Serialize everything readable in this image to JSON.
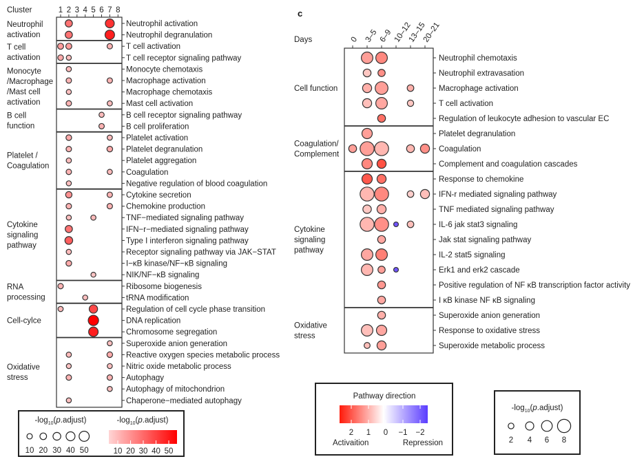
{
  "chart_data": [
    {
      "type": "scatter",
      "x_title": "Cluster",
      "columns": [
        "1",
        "2",
        "3",
        "4",
        "5",
        "6",
        "7",
        "8"
      ],
      "size_encoding": "-log10(p.adjust)",
      "color_encoding": "-log10(p.adjust)",
      "color_range": [
        "#ffd5d5",
        "#ff0000"
      ],
      "groups": [
        {
          "label": [
            "Neutrophil",
            "activation"
          ],
          "rows": [
            0,
            1
          ]
        },
        {
          "label": [
            "T cell",
            "activation"
          ],
          "rows": [
            2,
            3
          ]
        },
        {
          "label": [
            "Monocyte",
            "/Macrophage",
            "/Mast cell",
            "activation"
          ],
          "rows": [
            4,
            7
          ]
        },
        {
          "label": [
            "B cell",
            "function"
          ],
          "rows": [
            8,
            9
          ]
        },
        {
          "label": [
            "Platelet /",
            "Coagulation"
          ],
          "rows": [
            10,
            14
          ]
        },
        {
          "label": [
            "Cytokine",
            "signaling",
            "pathway"
          ],
          "rows": [
            15,
            22
          ]
        },
        {
          "label": [
            "RNA",
            "processing"
          ],
          "rows": [
            23,
            24
          ]
        },
        {
          "label": [
            "Cell-cylce"
          ],
          "rows": [
            25,
            27
          ]
        },
        {
          "label": [
            "Oxidative",
            "stress"
          ],
          "rows": [
            28,
            33
          ]
        }
      ],
      "rows": [
        {
          "term": "Neutrophil activation",
          "points": [
            [
              2,
              25
            ],
            [
              7,
              40
            ]
          ]
        },
        {
          "term": "Neutrophil degranulation",
          "points": [
            [
              2,
              25
            ],
            [
              7,
              45
            ]
          ]
        },
        {
          "term": "T cell activation",
          "points": [
            [
              1,
              15
            ],
            [
              2,
              15
            ],
            [
              7,
              10
            ]
          ]
        },
        {
          "term": "T cell receptor signaling pathway",
          "points": [
            [
              1,
              12
            ],
            [
              2,
              7
            ]
          ]
        },
        {
          "term": "Monocyte chemotaxis",
          "points": [
            [
              2,
              8
            ]
          ]
        },
        {
          "term": "Macrophage activation",
          "points": [
            [
              2,
              10
            ],
            [
              7,
              10
            ]
          ]
        },
        {
          "term": "Macrophage chemotaxis",
          "points": [
            [
              2,
              7
            ]
          ]
        },
        {
          "term": "Mast cell activation",
          "points": [
            [
              2,
              10
            ],
            [
              7,
              8
            ]
          ]
        },
        {
          "term": "B cell receptor signaling pathway",
          "points": [
            [
              6,
              8
            ]
          ]
        },
        {
          "term": "B cell proliferation",
          "points": [
            [
              6,
              10
            ]
          ]
        },
        {
          "term": "Platelet activation",
          "points": [
            [
              2,
              12
            ],
            [
              7,
              8
            ]
          ]
        },
        {
          "term": "Platelet degranulation",
          "points": [
            [
              2,
              10
            ],
            [
              7,
              12
            ]
          ]
        },
        {
          "term": "Platelet aggregation",
          "points": [
            [
              2,
              8
            ]
          ]
        },
        {
          "term": "Coagulation",
          "points": [
            [
              2,
              10
            ],
            [
              7,
              8
            ]
          ]
        },
        {
          "term": "Negative regulation of blood coagulation",
          "points": [
            [
              2,
              7
            ]
          ]
        },
        {
          "term": "Cytokine secretion",
          "points": [
            [
              2,
              18
            ],
            [
              7,
              10
            ]
          ]
        },
        {
          "term": "Chemokine production",
          "points": [
            [
              2,
              10
            ],
            [
              7,
              10
            ]
          ]
        },
        {
          "term": "TNF−mediated signaling pathway",
          "points": [
            [
              2,
              7
            ],
            [
              5,
              8
            ]
          ]
        },
        {
          "term": "IFN−r−mediated signaling pathway",
          "points": [
            [
              2,
              25
            ]
          ]
        },
        {
          "term": "Type I interferon signaling pathway",
          "points": [
            [
              2,
              30
            ]
          ]
        },
        {
          "term": "Receptor signaling pathway via JAK−STAT",
          "points": [
            [
              2,
              8
            ]
          ]
        },
        {
          "term": "I−κB kinase/NF−κB signaling",
          "points": [
            [
              2,
              12
            ]
          ]
        },
        {
          "term": "NIK/NF−κB signaling",
          "points": [
            [
              5,
              6
            ]
          ]
        },
        {
          "term": "Ribosome biogenesis",
          "points": [
            [
              1,
              10
            ]
          ]
        },
        {
          "term": "tRNA modification",
          "points": [
            [
              4,
              7
            ]
          ]
        },
        {
          "term": "Regulation of cell cycle phase transition",
          "points": [
            [
              1,
              8
            ],
            [
              5,
              35
            ]
          ]
        },
        {
          "term": "DNA replication",
          "points": [
            [
              5,
              52
            ]
          ]
        },
        {
          "term": "Chromosome segregation",
          "points": [
            [
              5,
              45
            ]
          ]
        },
        {
          "term": "Superoxide anion generation",
          "points": [
            [
              7,
              7
            ]
          ]
        },
        {
          "term": "Reactive oxygen species metabolic process",
          "points": [
            [
              2,
              8
            ],
            [
              7,
              12
            ]
          ]
        },
        {
          "term": "Nitric oxide metabolic process",
          "points": [
            [
              2,
              6
            ],
            [
              7,
              7
            ]
          ]
        },
        {
          "term": "Autophagy",
          "points": [
            [
              2,
              10
            ],
            [
              7,
              10
            ]
          ]
        },
        {
          "term": "Autophagy of mitochondrion",
          "points": [
            [
              7,
              7
            ]
          ]
        },
        {
          "term": "Chaperone−mediated autophagy",
          "points": [
            [
              2,
              7
            ]
          ]
        }
      ],
      "legend": {
        "size_title": {
          "pre": "-log",
          "sub": "10",
          "open": "(",
          "ital": "p",
          "post": ".adjust)"
        },
        "size_values": [
          "10",
          "20",
          "30",
          "40",
          "50"
        ],
        "color_title": {
          "pre": "-log",
          "sub": "10",
          "open": "(",
          "ital": "p",
          "post": ".adjust)"
        },
        "color_values": [
          "10",
          "20",
          "30",
          "40",
          "50"
        ]
      }
    },
    {
      "type": "scatter",
      "panel_label": "c",
      "x_title": "Days",
      "columns": [
        "0",
        "3–5",
        "6–9",
        "10–12",
        "13–15",
        "20–21"
      ],
      "size_encoding": "-log10(p.adjust)",
      "color_encoding": "Pathway direction",
      "colors": {
        "activation": "#ff2a1a",
        "neutral": "#ffffff",
        "repression": "#5a3cff"
      },
      "groups": [
        {
          "label": [
            "Cell function"
          ],
          "rows": [
            0,
            4
          ]
        },
        {
          "label": [
            "Coagulation/",
            "Complement"
          ],
          "rows": [
            5,
            7
          ]
        },
        {
          "label": [
            "Cytokine",
            "signaling",
            "pathway"
          ],
          "rows": [
            8,
            16
          ]
        },
        {
          "label": [
            "Oxidative",
            "stress"
          ],
          "rows": [
            17,
            19
          ]
        }
      ],
      "rows": [
        {
          "term": "Neutrophil chemotaxis",
          "points": [
            [
              "3–5",
              6,
              1.0
            ],
            [
              "6–9",
              6,
              1.3
            ]
          ]
        },
        {
          "term": "Neutrophil extravasation",
          "points": [
            [
              "3–5",
              3,
              0.5
            ],
            [
              "6–9",
              2.5,
              1.2
            ]
          ]
        },
        {
          "term": "Macrophage activation",
          "points": [
            [
              "3–5",
              4,
              0.8
            ],
            [
              "6–9",
              7,
              1.0
            ],
            [
              "13–15",
              2,
              0.8
            ]
          ]
        },
        {
          "term": "T cell activation",
          "points": [
            [
              "3–5",
              4,
              0.6
            ],
            [
              "6–9",
              6,
              0.9
            ],
            [
              "13–15",
              1.8,
              0.5
            ]
          ]
        },
        {
          "term": "Regulation of leukocyte adhesion to vascular EC",
          "points": [
            [
              "6–9",
              3,
              1.6
            ]
          ]
        },
        {
          "term": "Platelet degranulation",
          "points": [
            [
              "3–5",
              5,
              1.0
            ]
          ]
        },
        {
          "term": "Coagulation",
          "points": [
            [
              "0",
              3,
              1.0
            ],
            [
              "3–5",
              8,
              1.0
            ],
            [
              "6–9",
              8,
              0.7
            ],
            [
              "13–15",
              3,
              0.7
            ],
            [
              "20–21",
              4,
              1.2
            ]
          ]
        },
        {
          "term": "Complement and coagulation cascades",
          "points": [
            [
              "3–5",
              5,
              1.3
            ],
            [
              "6–9",
              4,
              2.0
            ]
          ]
        },
        {
          "term": "Response to chemokine",
          "points": [
            [
              "3–5",
              5,
              1.9
            ],
            [
              "6–9",
              4,
              1.6
            ]
          ]
        },
        {
          "term": "IFN-r mediated signaling pathway",
          "points": [
            [
              "3–5",
              8,
              0.7
            ],
            [
              "6–9",
              8,
              1.3
            ],
            [
              "13–15",
              2,
              0.4
            ],
            [
              "20–21",
              4,
              0.6
            ]
          ]
        },
        {
          "term": "TNF mediated signaling pathway",
          "points": [
            [
              "3–5",
              3.5,
              0.5
            ],
            [
              "6–9",
              4,
              0.8
            ]
          ]
        },
        {
          "term": "IL-6 jak stat3 signaling",
          "points": [
            [
              "3–5",
              8,
              0.7
            ],
            [
              "6–9",
              8,
              1.2
            ],
            [
              "10–12",
              0.5,
              -2
            ],
            [
              "13–15",
              2,
              0.6
            ]
          ]
        },
        {
          "term": "Jak stat signaling pathway",
          "points": [
            [
              "6–9",
              3,
              0.9
            ]
          ]
        },
        {
          "term": "IL-2 stat5 signaling",
          "points": [
            [
              "3–5",
              6,
              0.9
            ],
            [
              "6–9",
              6,
              1.4
            ]
          ]
        },
        {
          "term": "Erk1 and erk2 cascade",
          "points": [
            [
              "3–5",
              6,
              0.7
            ],
            [
              "6–9",
              2.5,
              1.0
            ],
            [
              "10–12",
              0.5,
              -2
            ]
          ]
        },
        {
          "term": "Positive regulation of NF κB transcription factor activity",
          "points": [
            [
              "6–9",
              3,
              1.1
            ]
          ]
        },
        {
          "term": "I κB kinase NF κB signaling",
          "points": [
            [
              "6–9",
              3,
              0.9
            ]
          ]
        },
        {
          "term": "Superoxide anion generation",
          "points": [
            [
              "6–9",
              3,
              0.8
            ]
          ]
        },
        {
          "term": "Response to oxidative stress",
          "points": [
            [
              "3–5",
              6,
              0.6
            ],
            [
              "6–9",
              5,
              0.9
            ]
          ]
        },
        {
          "term": "Superoxide metabolic process",
          "points": [
            [
              "3–5",
              1.5,
              0.6
            ],
            [
              "6–9",
              4,
              1.0
            ]
          ]
        }
      ],
      "legend": {
        "direction_title": "Pathway direction",
        "direction_values": [
          "2",
          "1",
          "0",
          "−1",
          "−2"
        ],
        "activation_label": "Activaition",
        "repression_label": "Repression",
        "size_title": {
          "pre": "-log",
          "sub": "10",
          "open": "(",
          "ital": "p",
          "post": ".adjust)"
        },
        "size_values": [
          "2",
          "4",
          "6",
          "8"
        ]
      }
    }
  ]
}
